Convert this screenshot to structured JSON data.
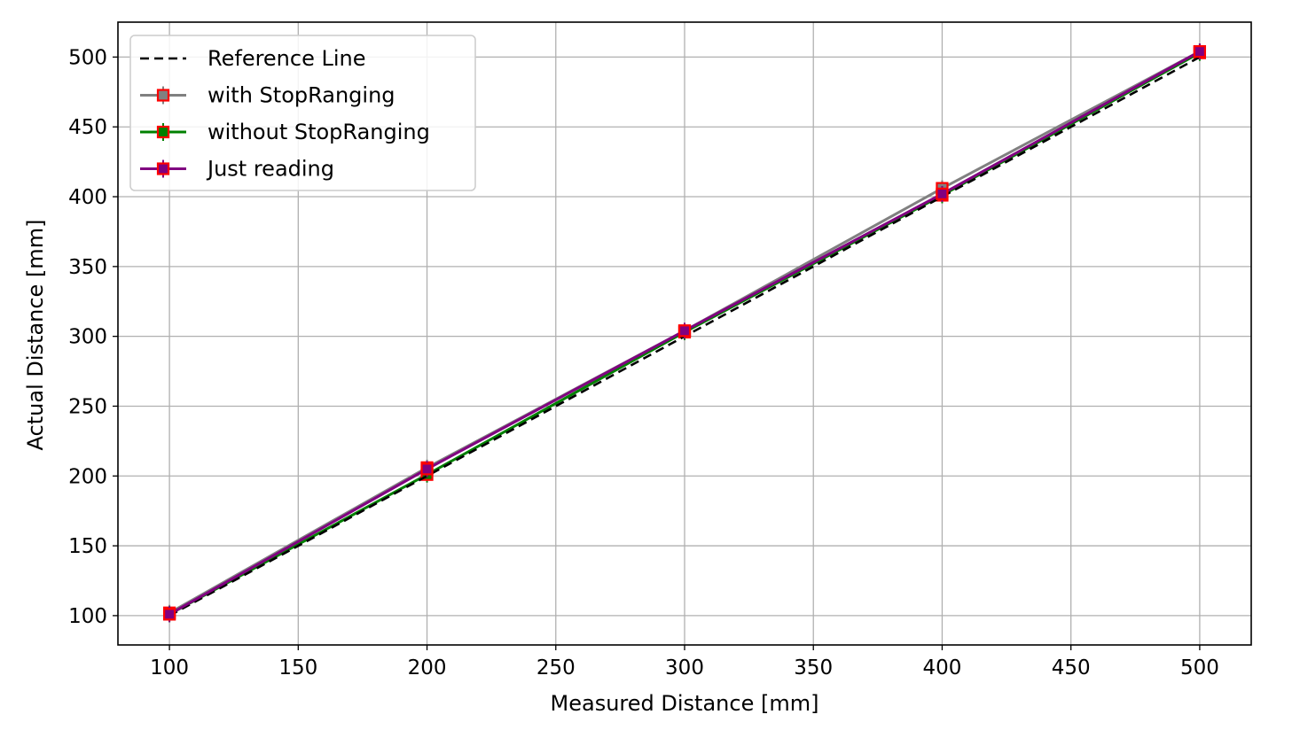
{
  "chart_data": {
    "type": "line",
    "title": "",
    "xlabel": "Measured Distance [mm]",
    "ylabel": "Actual Distance [mm]",
    "xlim": [
      80,
      520
    ],
    "ylim": [
      79,
      525
    ],
    "xticks": [
      100,
      150,
      200,
      250,
      300,
      350,
      400,
      450,
      500
    ],
    "yticks": [
      100,
      150,
      200,
      250,
      300,
      350,
      400,
      450,
      500
    ],
    "grid": true,
    "legend_position": "top-left",
    "x": [
      100,
      200,
      300,
      400,
      500
    ],
    "series": [
      {
        "name": "Reference Line",
        "values": [
          100,
          200,
          300,
          400,
          500
        ],
        "color": "#000000",
        "style": "dashed",
        "marker": "none"
      },
      {
        "name": "with StopRanging",
        "values": [
          102,
          206,
          304,
          406,
          504
        ],
        "color": "#808080",
        "style": "solid",
        "marker": "square"
      },
      {
        "name": "without StopRanging",
        "values": [
          101,
          201,
          303,
          401,
          503
        ],
        "color": "#008000",
        "style": "solid",
        "marker": "square"
      },
      {
        "name": "Just reading",
        "values": [
          101,
          205,
          304,
          402,
          504
        ],
        "color": "#800080",
        "style": "solid",
        "marker": "square"
      }
    ],
    "marker_edge_color": "#ff0000"
  }
}
